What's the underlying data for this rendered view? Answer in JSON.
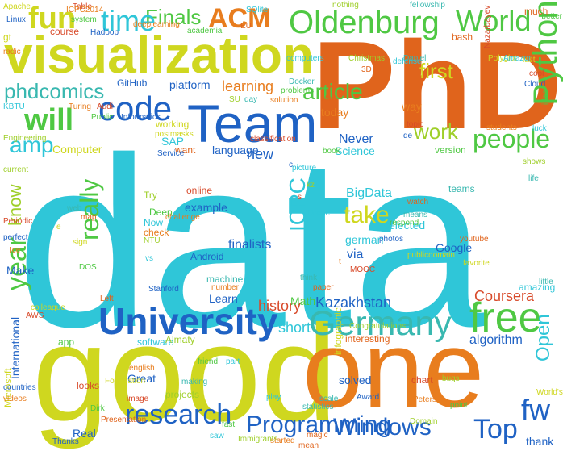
{
  "palette": {
    "cyan": "#2fc6d8",
    "yellow": "#cfd71f",
    "orange": "#e87d1e",
    "green": "#4fc843",
    "blue": "#1f62c4",
    "dark_orange": "#e0641c",
    "teal": "#39b8b0",
    "lime": "#9fcf2a",
    "red": "#d84a2a"
  },
  "words": [
    "data",
    "PhD",
    "visualization",
    "good",
    "one",
    "Team",
    "University",
    "Oldenburg",
    "World",
    "Germany",
    "Python",
    "free",
    "code",
    "will",
    "people",
    "ACM",
    "Finals",
    "fun",
    "time",
    "article",
    "Windows",
    "Top",
    "research",
    "Programming",
    "year",
    "ICPC",
    "really",
    "take",
    "work",
    "first",
    "amp",
    "know",
    "BigData",
    "Coursera",
    "history",
    "Kazakhstan",
    "Open",
    "fw",
    "phdcomics",
    "selected",
    "new",
    "learning",
    "platform",
    "SAP",
    "Science",
    "Computer",
    "short",
    "algorithm",
    "via",
    "Google",
    "teams",
    "finalists",
    "example",
    "online",
    "Android",
    "check",
    "Deep",
    "Now",
    "Try",
    "language",
    "want",
    "working",
    "Never",
    "today",
    "way",
    "version",
    "Learn",
    "Math",
    "machine",
    "interesting",
    "solved",
    "looks",
    "Great",
    "english",
    "app",
    "software",
    "Almaty",
    "Real",
    "International",
    "Microsoft",
    "thank",
    "Thanks",
    "started",
    "fast",
    "saw",
    "projects",
    "making",
    "Presentation",
    "infographic",
    "chart",
    "Award",
    "Peters",
    "point",
    "amazing",
    "bugs",
    "little",
    "much",
    "Apache",
    "Table",
    "Linux",
    "ICPC2014",
    "system",
    "SQlite",
    "nothing",
    "fellowship",
    "EU",
    "gt",
    "course",
    "Hadoop",
    "deeplearning",
    "academia",
    "computers",
    "Christmas",
    "Daniel",
    "bash",
    "Polyglot",
    "Nazarbayev",
    "GitHub",
    "Turing",
    "Public",
    "KBTU",
    "Engineering",
    "Docker",
    "3D",
    "last",
    "cool",
    "Cloud",
    "students",
    "idea",
    "luck",
    "shows",
    "life",
    "youtube",
    "favorite",
    "MOOC",
    "photos",
    "german",
    "respond",
    "Drone",
    "kz",
    "web",
    "map",
    "sign",
    "Periodic",
    "perfect",
    "Ice",
    "DOS",
    "vs",
    "NTU",
    "Make",
    "Left",
    "colleague",
    "AWS",
    "Stanford",
    "number",
    "friend",
    "part",
    "Congratulations",
    "think",
    "paper",
    "Foundation",
    "image",
    "countries",
    "videos",
    "Dirk",
    "play",
    "Domain",
    "scale",
    "mean",
    "World's",
    "Audi",
    "Informatics",
    "solution",
    "problems",
    "defense",
    "SU",
    "day",
    "start",
    "postmasks",
    "classification",
    "Service",
    "challenge",
    "book",
    "picture",
    "current",
    "means",
    "watch",
    "publicdomain",
    "topic",
    "de",
    "radic",
    "better",
    "Amazon",
    "Immigrants",
    "statistics",
    "magic",
    "e",
    "s",
    "c",
    "t"
  ]
}
